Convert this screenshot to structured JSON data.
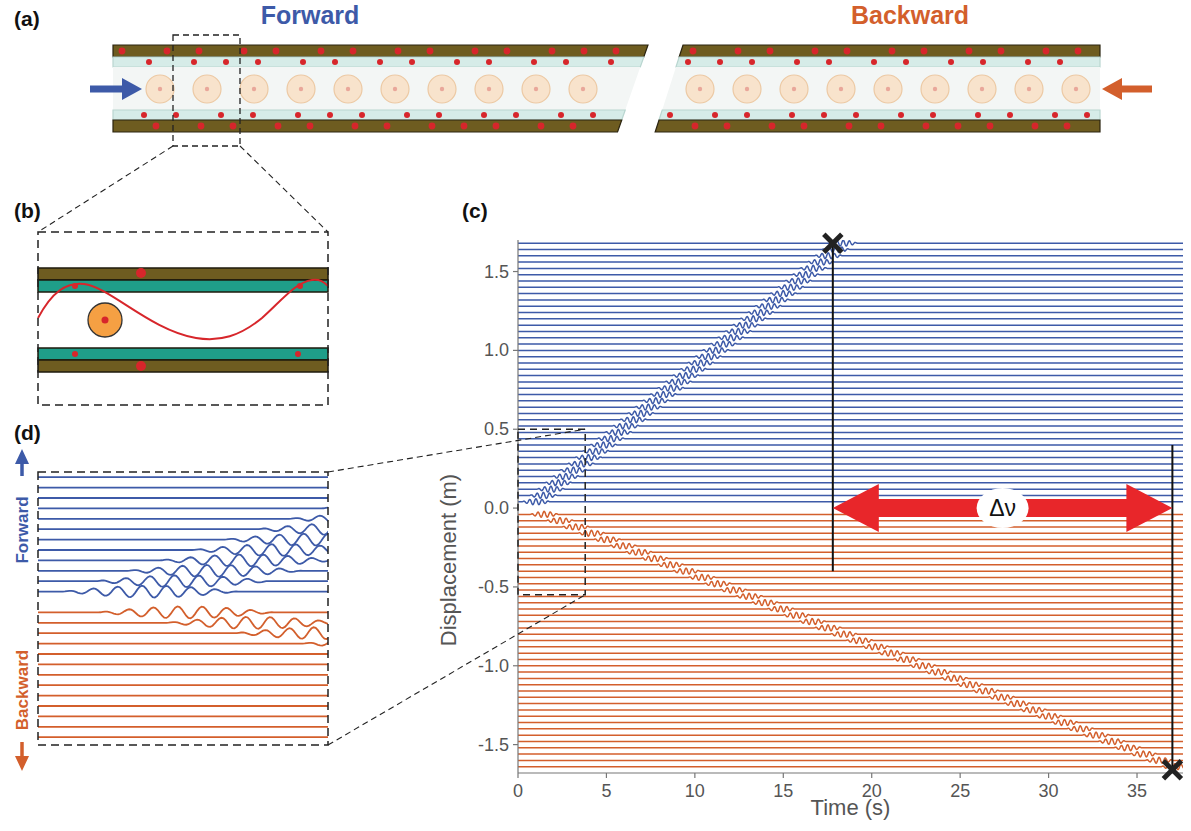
{
  "panels": {
    "a": "(a)",
    "b": "(b)",
    "c": "(c)",
    "d": "(d)"
  },
  "diagram": {
    "forward_title": "Forward",
    "backward_title": "Backward"
  },
  "chart_data": {
    "type": "line",
    "xlabel": "Time (s)",
    "ylabel": "Displacement (m)",
    "xlim": [
      0,
      37.6
    ],
    "ylim": [
      -1.68,
      1.7
    ],
    "xticks": [
      0,
      5,
      10,
      15,
      20,
      25,
      30,
      35
    ],
    "yticks": [
      -1.5,
      {
        "value": -1,
        "label": "-1.0"
      },
      -0.5,
      {
        "value": 0,
        "label": "0.0"
      },
      0.5,
      {
        "value": 1,
        "label": "1.0"
      },
      1.5
    ],
    "grid": false,
    "series": [
      {
        "name": "Forward",
        "color": "#3d5aa8",
        "baselines": [
          0.04,
          0.08,
          0.12,
          0.16,
          0.2,
          0.24,
          0.28,
          0.32,
          0.36,
          0.4,
          0.44,
          0.48,
          0.52,
          0.56,
          0.6,
          0.64,
          0.68,
          0.72,
          0.76,
          0.8,
          0.84,
          0.88,
          0.92,
          0.96,
          1.0,
          1.04,
          1.08,
          1.12,
          1.16,
          1.2,
          1.24,
          1.28,
          1.32,
          1.36,
          1.4,
          1.44,
          1.48,
          1.52,
          1.56,
          1.6,
          1.64,
          1.68
        ],
        "front": {
          "x": [
            0,
            17.8
          ],
          "y": [
            0,
            1.68
          ]
        }
      },
      {
        "name": "Backward",
        "color": "#d35f2c",
        "baselines": [
          -0.04,
          -0.08,
          -0.12,
          -0.16,
          -0.2,
          -0.24,
          -0.28,
          -0.32,
          -0.36,
          -0.4,
          -0.44,
          -0.48,
          -0.52,
          -0.56,
          -0.6,
          -0.64,
          -0.68,
          -0.72,
          -0.76,
          -0.8,
          -0.84,
          -0.88,
          -0.92,
          -0.96,
          -1.0,
          -1.04,
          -1.08,
          -1.12,
          -1.16,
          -1.2,
          -1.24,
          -1.28,
          -1.32,
          -1.36,
          -1.4,
          -1.44,
          -1.48,
          -1.52,
          -1.56,
          -1.6,
          -1.64
        ],
        "front": {
          "x": [
            0,
            37.0
          ],
          "y": [
            0,
            -1.66
          ]
        }
      }
    ],
    "markers": [
      {
        "x": 17.8,
        "y": 1.68,
        "line_to": -0.4
      },
      {
        "x": 37.0,
        "y": -1.66,
        "line_to": 0.4
      }
    ],
    "annotation": {
      "text": "Δν",
      "x_from": 17.8,
      "x_to": 37.0,
      "y": 0
    },
    "zoom": {
      "xlim": [
        0,
        3.8
      ],
      "ylim": [
        -0.55,
        0.5
      ]
    }
  }
}
